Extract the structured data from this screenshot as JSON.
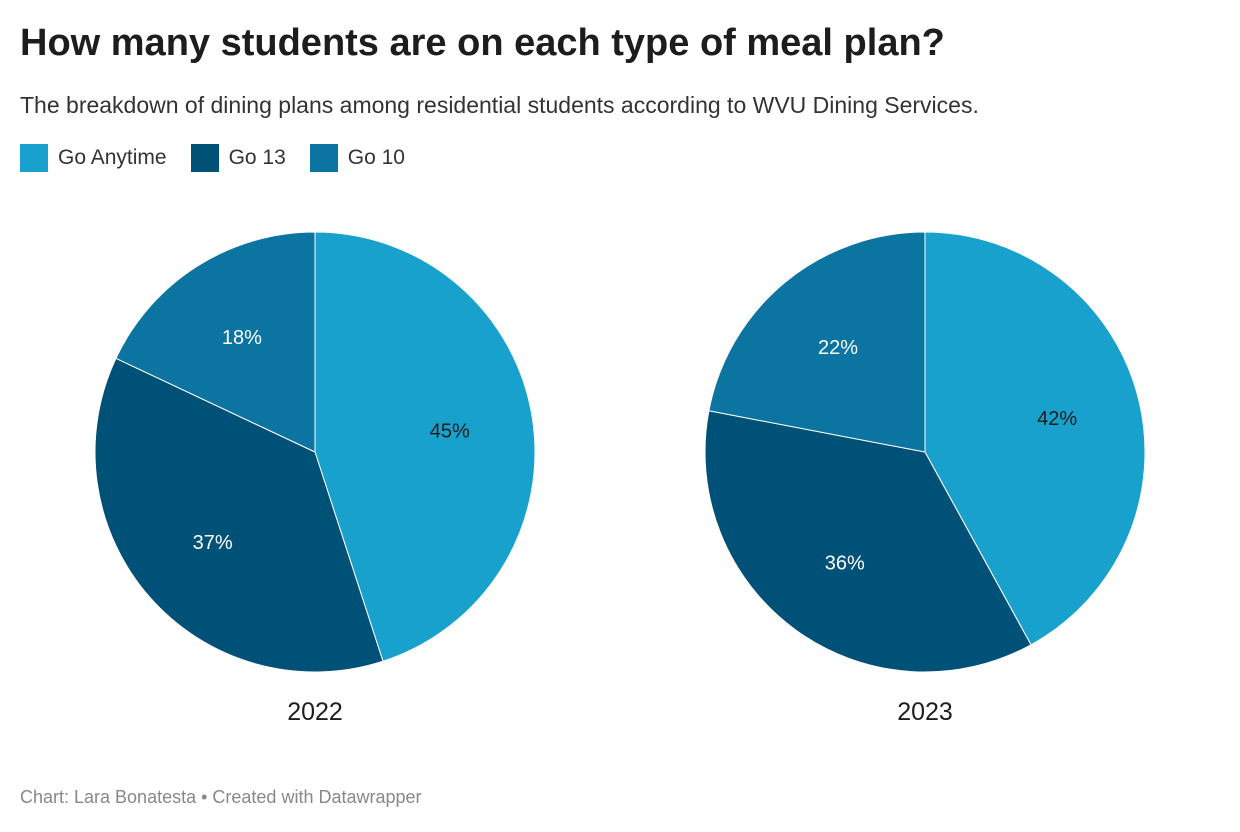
{
  "title": "How many students are on each type of meal plan?",
  "subtitle": "The breakdown of dining plans among residential students according to WVU Dining Services.",
  "footer": "Chart: Lara Bonatesta • Created with Datawrapper",
  "chart_data": {
    "type": "pie",
    "categories": [
      "Go Anytime",
      "Go 13",
      "Go 10"
    ],
    "colors": [
      "#18a1cd",
      "#005178",
      "#0b74a1"
    ],
    "label_colors": [
      "#1d1d1d",
      "#ffffff",
      "#ffffff"
    ],
    "pies": [
      {
        "label": "2022",
        "values": [
          45,
          37,
          18
        ],
        "labels": [
          "45%",
          "37%",
          "18%"
        ]
      },
      {
        "label": "2023",
        "values": [
          42,
          36,
          22
        ],
        "labels": [
          "42%",
          "36%",
          "22%"
        ]
      }
    ],
    "legend": "top-left"
  }
}
